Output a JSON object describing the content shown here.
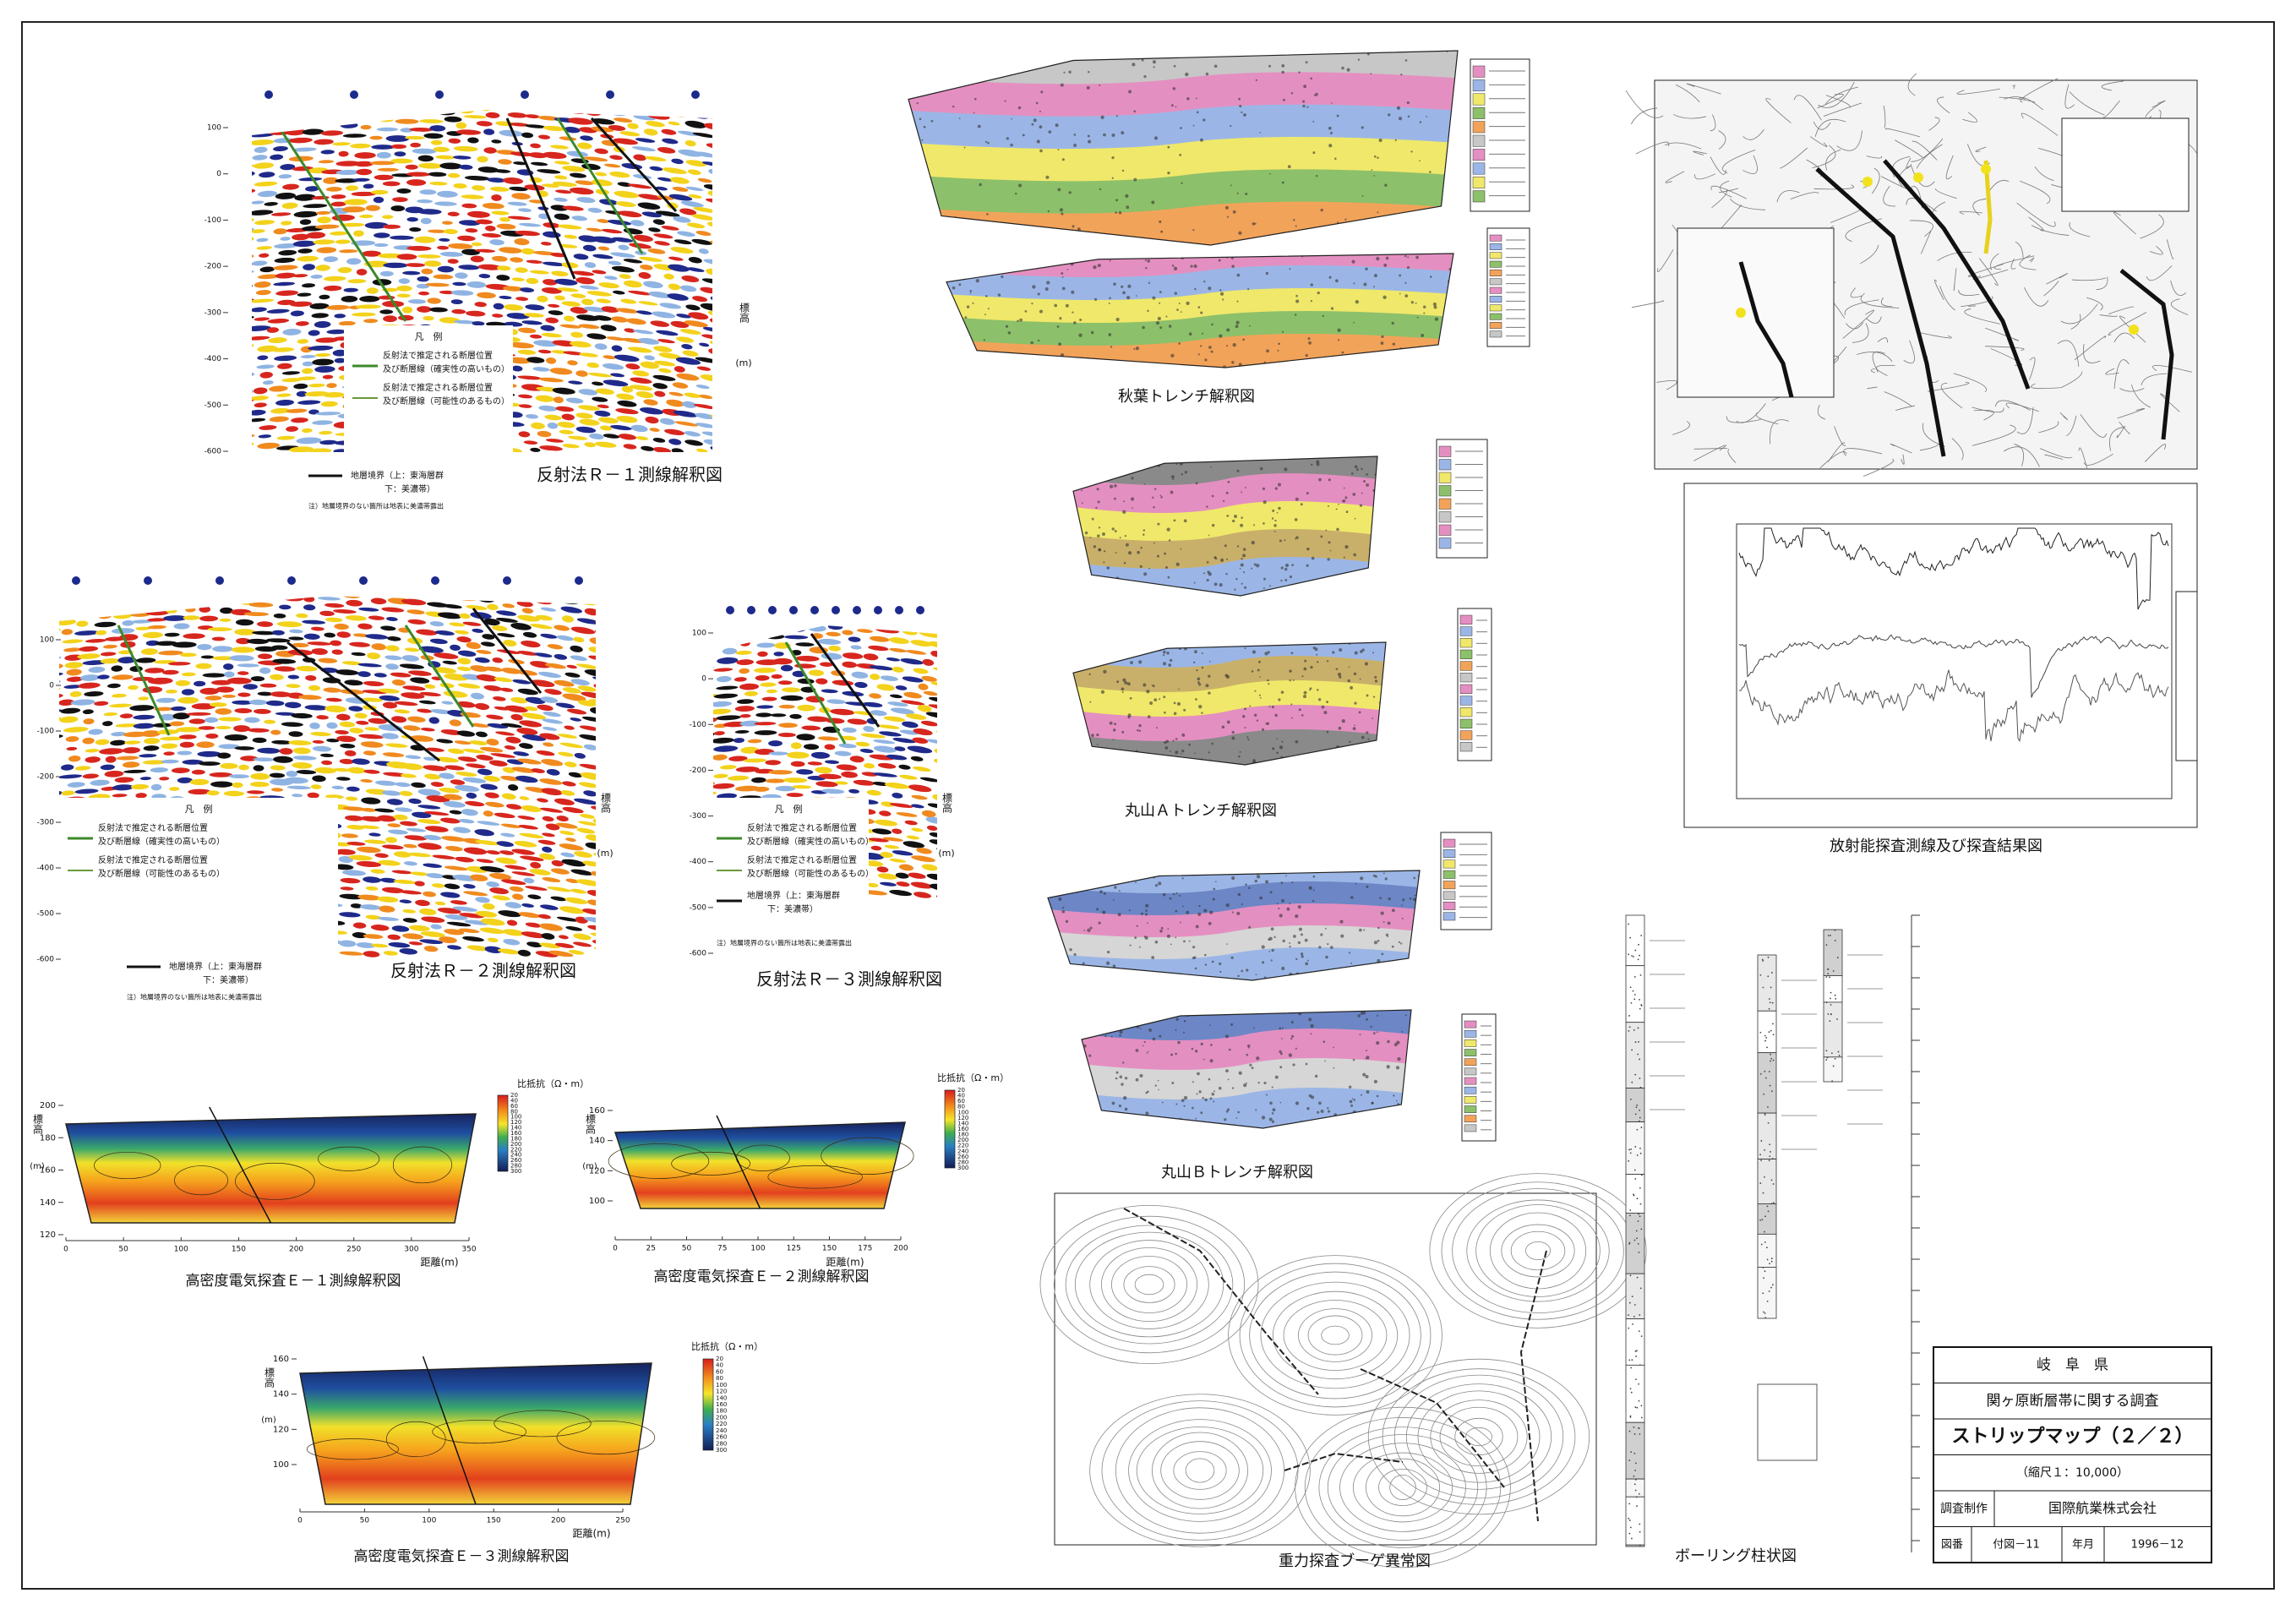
{
  "sheet": {
    "prefecture": "岐　阜　県",
    "project": "関ヶ原断層帯に関する調査",
    "title": "ストリップマップ（２／２）",
    "scale": "（縮尺１：10,000）",
    "maker_label": "調査制作",
    "maker": "国際航業株式会社",
    "figure_label": "図番",
    "figure_no": "付図－11",
    "date_label": "年月",
    "date": "1996－12"
  },
  "reflection": {
    "legend": {
      "title": "凡　例",
      "certain_1": "反射法で推定される断層位置",
      "certain_2": "及び断層線（確実性の高いもの）",
      "possible_1": "反射法で推定される断層位置",
      "possible_2": "及び断層線（可能性のあるもの）",
      "boundary": "地層境界（上：東海層群",
      "boundary_2": "下：美濃帯）",
      "note": "注）地層境界のない箇所は地表に美濃帯露出"
    },
    "axis_label": "標高",
    "axis_unit": "(m)",
    "lines": [
      {
        "caption": "反射法Ｒ－１測線解釈図",
        "yticks": [
          100,
          0,
          -100,
          -200,
          -300,
          -400,
          -500,
          -600
        ]
      },
      {
        "caption": "反射法Ｒ－２測線解釈図",
        "yticks": [
          100,
          0,
          -100,
          -200,
          -300,
          -400,
          -500,
          -600
        ]
      },
      {
        "caption": "反射法Ｒ－３測線解釈図",
        "yticks": [
          100,
          0,
          -100,
          -200,
          -300,
          -400,
          -500,
          -600
        ]
      }
    ]
  },
  "resistivity": {
    "scale_label": "比抵抗（Ω・m）",
    "axis_label": "標高",
    "axis_unit": "(m)",
    "x_label": "距離(m)",
    "lines": [
      {
        "caption": "高密度電気探査Ｅ－１測線解釈図",
        "yticks": [
          200,
          180,
          160,
          140,
          120
        ],
        "xticks": [
          0,
          50,
          100,
          150,
          200,
          250,
          300,
          350
        ],
        "scale_ticks": [
          20,
          40,
          60,
          80,
          100,
          120,
          140,
          160,
          180,
          200,
          220,
          240,
          260,
          280,
          300
        ]
      },
      {
        "caption": "高密度電気探査Ｅ－２測線解釈図",
        "yticks": [
          160,
          140,
          120,
          100
        ],
        "xticks": [
          0,
          25,
          50,
          75,
          100,
          125,
          150,
          175,
          200
        ],
        "scale_ticks": [
          20,
          40,
          60,
          80,
          100,
          120,
          140,
          160,
          180,
          200,
          220,
          240,
          260,
          280,
          300
        ]
      },
      {
        "caption": "高密度電気探査Ｅ－３測線解釈図",
        "yticks": [
          160,
          140,
          120,
          100
        ],
        "xticks": [
          0,
          50,
          100,
          150,
          200,
          250
        ],
        "scale_ticks": [
          20,
          40,
          60,
          80,
          100,
          120,
          140,
          160,
          180,
          200,
          220,
          240,
          260,
          280,
          300
        ]
      }
    ]
  },
  "trenches": [
    "秋葉トレンチ解釈図",
    "丸山Ａトレンチ解釈図",
    "丸山Ｂトレンチ解釈図"
  ],
  "radiometric": {
    "caption": "放射能探査測線及び探査結果図"
  },
  "gravity": {
    "caption": "重力探査ブーゲ異常図"
  },
  "boring": {
    "caption": "ボーリング柱状図"
  }
}
